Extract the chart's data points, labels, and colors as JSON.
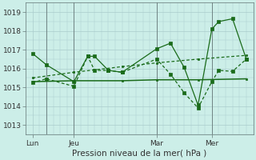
{
  "bg_color": "#cceee8",
  "plot_bg_color": "#cceee8",
  "grid_color": "#aacccc",
  "line_color": "#1a6b1a",
  "xlabel": "Pression niveau de la mer( hPa )",
  "ylim": [
    1012.5,
    1019.5
  ],
  "yticks": [
    1013,
    1014,
    1015,
    1016,
    1017,
    1018,
    1019
  ],
  "xtick_labels": [
    "Lun",
    "Jeu",
    "Mar",
    "Mer"
  ],
  "xtick_positions": [
    0,
    6,
    18,
    26
  ],
  "vline_positions": [
    2,
    6,
    18,
    26
  ],
  "xlim": [
    -1,
    32
  ],
  "lines": [
    {
      "x": [
        0,
        2,
        6,
        8,
        9,
        11,
        13,
        18,
        20,
        22,
        24,
        26,
        27,
        29,
        31
      ],
      "y": [
        1016.8,
        1016.2,
        1015.3,
        1016.65,
        1016.65,
        1015.9,
        1015.8,
        1017.05,
        1017.35,
        1016.05,
        1014.05,
        1018.1,
        1018.5,
        1018.65,
        1016.5
      ],
      "style": "solid"
    },
    {
      "x": [
        0,
        2,
        6,
        8,
        9,
        11,
        13,
        18,
        20,
        22,
        24,
        26,
        27,
        29,
        31
      ],
      "y": [
        1015.25,
        1015.45,
        1015.05,
        1016.65,
        1015.9,
        1015.9,
        1015.8,
        1016.5,
        1015.7,
        1014.7,
        1013.9,
        1015.3,
        1015.9,
        1015.85,
        1016.5
      ],
      "style": "dashed"
    },
    {
      "x": [
        0,
        6,
        13,
        18,
        24,
        31
      ],
      "y": [
        1015.3,
        1015.35,
        1015.35,
        1015.4,
        1015.4,
        1015.45
      ],
      "style": "solid"
    },
    {
      "x": [
        0,
        6,
        13,
        18,
        24,
        31
      ],
      "y": [
        1015.5,
        1015.8,
        1016.1,
        1016.3,
        1016.5,
        1016.7
      ],
      "style": "dashed"
    }
  ]
}
